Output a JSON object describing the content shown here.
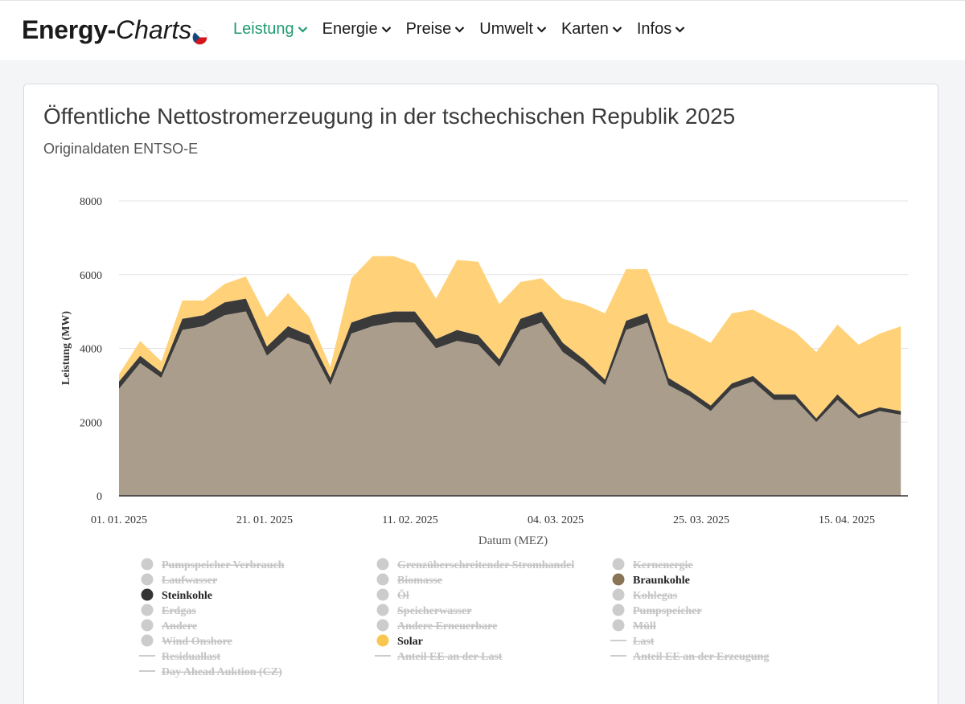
{
  "brand": {
    "part1": "Energy-",
    "part2": "Charts"
  },
  "nav": [
    {
      "label": "Leistung",
      "active": true
    },
    {
      "label": "Energie",
      "active": false
    },
    {
      "label": "Preise",
      "active": false
    },
    {
      "label": "Umwelt",
      "active": false
    },
    {
      "label": "Karten",
      "active": false
    },
    {
      "label": "Infos",
      "active": false
    }
  ],
  "colors": {
    "accent": "#1f9b73",
    "braunkohle": "#ab9d8c",
    "braunkohle_marker": "#8b7355",
    "steinkohle": "#3a3a3a",
    "solar": "#ffd27a",
    "solar_marker": "#f9c74f",
    "disabled": "#cccccc"
  },
  "chart_data": {
    "type": "area",
    "title": "Öffentliche Nettostromerzeugung in der tschechischen Republik 2025",
    "subtitle": "Originaldaten ENTSO-E",
    "xlabel": "Datum (MEZ)",
    "ylabel": "Leistung (MW)",
    "ylim": [
      0,
      8000
    ],
    "yticks": [
      0,
      2000,
      4000,
      6000,
      8000
    ],
    "xlim": [
      "2025-01-01",
      "2025-04-23"
    ],
    "xticks": [
      "01. 01. 2025",
      "21. 01. 2025",
      "11. 02. 2025",
      "04. 03. 2025",
      "25. 03. 2025",
      "15. 04. 2025"
    ],
    "grid": true,
    "stacked": true,
    "x": [
      "01-01",
      "01-04",
      "01-07",
      "01-10",
      "01-13",
      "01-16",
      "01-19",
      "01-22",
      "01-25",
      "01-28",
      "01-31",
      "02-03",
      "02-06",
      "02-09",
      "02-12",
      "02-15",
      "02-18",
      "02-21",
      "02-24",
      "02-27",
      "03-02",
      "03-05",
      "03-08",
      "03-11",
      "03-14",
      "03-17",
      "03-20",
      "03-23",
      "03-26",
      "03-29",
      "04-01",
      "04-04",
      "04-07",
      "04-10",
      "04-13",
      "04-16",
      "04-19",
      "04-22"
    ],
    "series": [
      {
        "name": "Braunkohle",
        "values": [
          2900,
          3600,
          3200,
          4500,
          4600,
          4900,
          5000,
          3800,
          4300,
          4100,
          3000,
          4400,
          4600,
          4700,
          4700,
          4000,
          4200,
          4100,
          3500,
          4500,
          4700,
          3900,
          3500,
          3000,
          4500,
          4700,
          3000,
          2700,
          2300,
          2900,
          3100,
          2600,
          2600,
          2000,
          2600,
          2100,
          2300,
          2200
        ]
      },
      {
        "name": "Steinkohle",
        "values": [
          200,
          200,
          150,
          300,
          300,
          350,
          350,
          250,
          300,
          250,
          200,
          300,
          300,
          300,
          300,
          250,
          300,
          250,
          200,
          300,
          300,
          250,
          200,
          150,
          250,
          250,
          200,
          150,
          150,
          150,
          150,
          150,
          150,
          100,
          150,
          100,
          100,
          100
        ]
      },
      {
        "name": "Solar",
        "values": [
          200,
          400,
          300,
          500,
          400,
          500,
          600,
          800,
          900,
          500,
          300,
          1200,
          1600,
          1500,
          1300,
          1100,
          1900,
          2000,
          1500,
          1000,
          900,
          1200,
          1500,
          1800,
          1400,
          1200,
          1500,
          1600,
          1700,
          1900,
          1800,
          2000,
          1700,
          1800,
          1900,
          1900,
          2000,
          2300
        ]
      }
    ]
  },
  "legend": [
    {
      "label": "Pumpspeicher Verbrauch",
      "type": "dot",
      "enabled": false,
      "color": "#cccccc"
    },
    {
      "label": "Grenzüberschreitender Stromhandel",
      "type": "dot",
      "enabled": false,
      "color": "#cccccc"
    },
    {
      "label": "Kernenergie",
      "type": "dot",
      "enabled": false,
      "color": "#cccccc"
    },
    {
      "label": "Laufwasser",
      "type": "dot",
      "enabled": false,
      "color": "#cccccc"
    },
    {
      "label": "Biomasse",
      "type": "dot",
      "enabled": false,
      "color": "#cccccc"
    },
    {
      "label": "Braunkohle",
      "type": "dot",
      "enabled": true,
      "color": "#8b7355"
    },
    {
      "label": "Steinkohle",
      "type": "dot",
      "enabled": true,
      "color": "#333333"
    },
    {
      "label": "Öl",
      "type": "dot",
      "enabled": false,
      "color": "#cccccc"
    },
    {
      "label": "Kohlegas",
      "type": "dot",
      "enabled": false,
      "color": "#cccccc"
    },
    {
      "label": "Erdgas",
      "type": "dot",
      "enabled": false,
      "color": "#cccccc"
    },
    {
      "label": "Speicherwasser",
      "type": "dot",
      "enabled": false,
      "color": "#cccccc"
    },
    {
      "label": "Pumpspeicher",
      "type": "dot",
      "enabled": false,
      "color": "#cccccc"
    },
    {
      "label": "Andere",
      "type": "dot",
      "enabled": false,
      "color": "#cccccc"
    },
    {
      "label": "Andere Erneuerbare",
      "type": "dot",
      "enabled": false,
      "color": "#cccccc"
    },
    {
      "label": "Müll",
      "type": "dot",
      "enabled": false,
      "color": "#cccccc"
    },
    {
      "label": "Wind Onshore",
      "type": "dot",
      "enabled": false,
      "color": "#cccccc"
    },
    {
      "label": "Solar",
      "type": "dot",
      "enabled": true,
      "color": "#f9c74f"
    },
    {
      "label": "Last",
      "type": "line",
      "enabled": false,
      "color": "#cccccc"
    },
    {
      "label": "Residuallast",
      "type": "line",
      "enabled": false,
      "color": "#cccccc"
    },
    {
      "label": "Anteil EE an der Last",
      "type": "line",
      "enabled": false,
      "color": "#cccccc"
    },
    {
      "label": "Anteil EE an der Erzeugung",
      "type": "line",
      "enabled": false,
      "color": "#cccccc"
    },
    {
      "label": "Day Ahead Auktion (CZ)",
      "type": "line",
      "enabled": false,
      "color": "#cccccc"
    }
  ]
}
